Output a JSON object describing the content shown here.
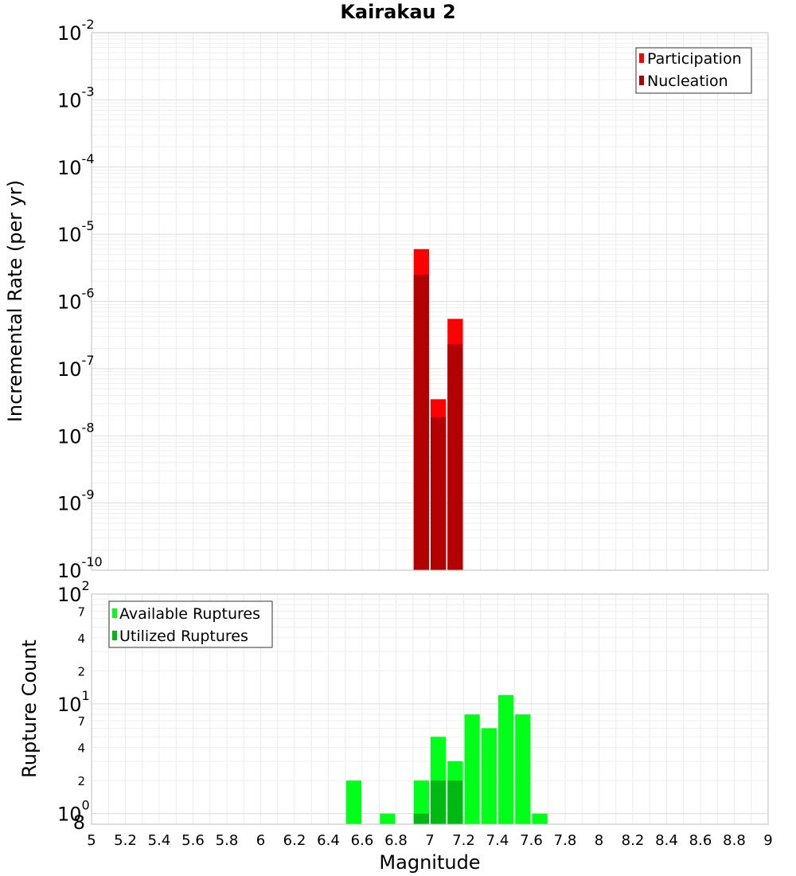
{
  "chart_data": [
    {
      "type": "bar",
      "title": "Kairakau 2",
      "ylabel": "Incremental Rate (per yr)",
      "xlabel": "",
      "xlim": [
        5,
        9
      ],
      "ylim_exp": [
        -10,
        -2
      ],
      "yscale": "log",
      "y_tick_exponents": [
        -10,
        -9,
        -8,
        -7,
        -6,
        -5,
        -4,
        -3,
        -2
      ],
      "grid": true,
      "legend_position": "top-right",
      "bin_width": 0.1,
      "series": [
        {
          "name": "Participation",
          "color": "#ff0000",
          "x": [
            6.95,
            7.05,
            7.15
          ],
          "values": [
            6e-06,
            3.5e-08,
            5.5e-07
          ]
        },
        {
          "name": "Nucleation",
          "color": "#b30000",
          "x": [
            6.95,
            7.05,
            7.15
          ],
          "values": [
            2.5e-06,
            1.9e-08,
            2.3e-07
          ]
        }
      ]
    },
    {
      "type": "bar",
      "title": "",
      "ylabel": "Rupture Count",
      "xlabel": "Magnitude",
      "xlim": [
        5,
        9
      ],
      "ylim": [
        0.8,
        100
      ],
      "yscale": "log",
      "y_tick_exponents": [
        0,
        1,
        2
      ],
      "y_minor_ticks": [
        {
          "value": 0.8,
          "label": "8"
        },
        {
          "value": 2,
          "label": "2"
        },
        {
          "value": 4,
          "label": "4"
        },
        {
          "value": 7,
          "label": "7"
        },
        {
          "value": 20,
          "label": "2"
        },
        {
          "value": 40,
          "label": "4"
        },
        {
          "value": 70,
          "label": "7"
        }
      ],
      "x_ticks": [
        "5",
        "5.2",
        "5.4",
        "5.6",
        "5.8",
        "6",
        "6.2",
        "6.4",
        "6.6",
        "6.8",
        "7",
        "7.2",
        "7.4",
        "7.6",
        "7.8",
        "8",
        "8.2",
        "8.4",
        "8.6",
        "8.8",
        "9"
      ],
      "grid": true,
      "legend_position": "top-left",
      "bin_width": 0.1,
      "series": [
        {
          "name": "Available Ruptures",
          "color": "#00ff19",
          "x": [
            6.55,
            6.75,
            6.95,
            7.05,
            7.15,
            7.25,
            7.35,
            7.45,
            7.55,
            7.65
          ],
          "values": [
            2,
            1,
            2,
            5,
            3,
            8,
            6,
            12,
            8,
            1
          ]
        },
        {
          "name": "Utilized Ruptures",
          "color": "#00b814",
          "x": [
            6.95,
            7.05,
            7.15
          ],
          "values": [
            1,
            2,
            2
          ]
        }
      ]
    }
  ]
}
